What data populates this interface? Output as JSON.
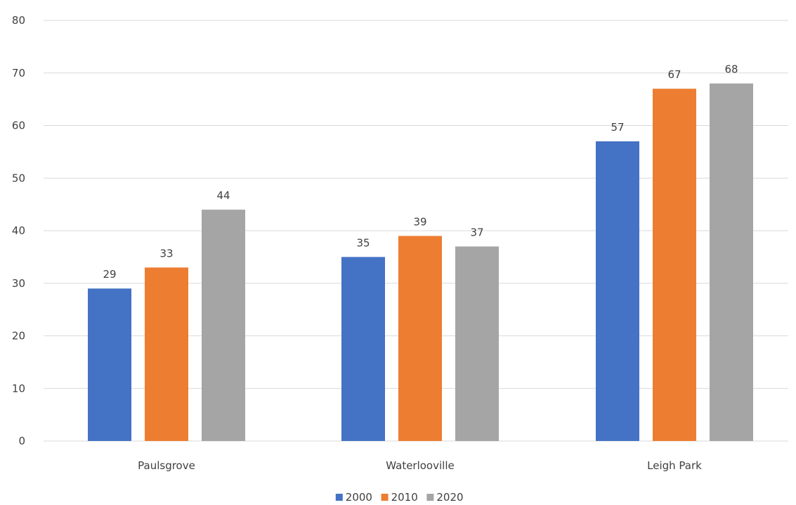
{
  "chart_data": {
    "type": "bar",
    "title": "",
    "xlabel": "",
    "ylabel": "",
    "categories": [
      "Paulsgrove",
      "Waterlooville",
      "Leigh Park"
    ],
    "series": [
      {
        "name": "2000",
        "values": [
          29,
          35,
          57
        ],
        "color": "#4472c4"
      },
      {
        "name": "2010",
        "values": [
          33,
          39,
          67
        ],
        "color": "#ed7d31"
      },
      {
        "name": "2020",
        "values": [
          44,
          37,
          68
        ],
        "color": "#a5a5a5"
      }
    ],
    "ylim": [
      0,
      80
    ],
    "yticks": [
      0,
      10,
      20,
      30,
      40,
      50,
      60,
      70,
      80
    ],
    "grid": true,
    "legend_position": "bottom",
    "data_labels": true
  }
}
